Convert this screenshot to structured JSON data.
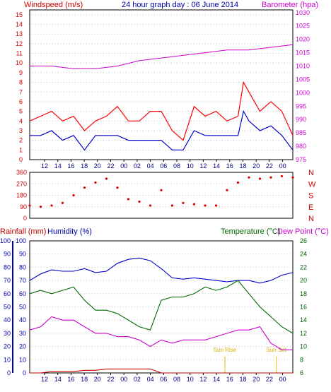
{
  "chart_data": [
    {
      "type": "line",
      "panel": "wind-barometer",
      "title": "24 hour graph day : 06 June 2014",
      "left_axis_label": "Windspeed (m/s)",
      "right_axis_label": "Barometer (hpa)",
      "left_ticks": [
        0,
        1,
        2,
        3,
        4,
        5,
        6,
        7,
        8,
        9,
        10,
        11,
        12,
        13,
        14,
        15
      ],
      "right_ticks": [
        975,
        980,
        985,
        990,
        995,
        1000,
        1005,
        1010,
        1015,
        1020,
        1025,
        1030
      ],
      "left_ylim": [
        0,
        15.5
      ],
      "right_ylim": [
        975,
        1031
      ],
      "x_ticks": [
        "12",
        "14",
        "16",
        "18",
        "20",
        "22",
        "00",
        "02",
        "04",
        "06",
        "08",
        "10",
        "12",
        "14",
        "16",
        "18",
        "20",
        "22",
        "00"
      ],
      "x_hours_range": [
        11,
        35
      ],
      "series": [
        {
          "role": "barometer",
          "color": "#cc00cc",
          "x": [
            11,
            13,
            15,
            17,
            19,
            21,
            23,
            25,
            27,
            29,
            31,
            33,
            35
          ],
          "values": [
            1010,
            1010,
            1009,
            1009,
            1010,
            1012,
            1013,
            1014,
            1015,
            1016,
            1016,
            1017,
            1018
          ]
        },
        {
          "role": "gust",
          "color": "#ff0000",
          "x": [
            11,
            12,
            13,
            14,
            15,
            16,
            17,
            18,
            19,
            20,
            21,
            22,
            23,
            24,
            25,
            26,
            27,
            28,
            29,
            30,
            30.5,
            31,
            32,
            33,
            34,
            35
          ],
          "values": [
            4,
            4.5,
            5,
            4,
            4.5,
            3,
            4,
            4.5,
            5.5,
            4,
            4,
            5,
            5,
            3,
            2,
            5.5,
            4.5,
            5,
            4,
            4.5,
            8,
            7,
            5,
            6,
            5,
            2.5
          ]
        },
        {
          "role": "average",
          "color": "#0000cc",
          "x": [
            11,
            12,
            13,
            14,
            15,
            16,
            17,
            18,
            19,
            20,
            21,
            22,
            23,
            24,
            25,
            26,
            27,
            28,
            29,
            30,
            30.5,
            31,
            32,
            33,
            34,
            35
          ],
          "values": [
            2.5,
            2.5,
            3,
            2,
            2.5,
            1,
            2.5,
            2.5,
            2.5,
            2,
            2,
            2,
            2,
            1,
            1,
            3,
            2.5,
            2.5,
            2.5,
            2.5,
            5,
            4,
            3,
            3.5,
            2.5,
            1
          ]
        }
      ]
    },
    {
      "type": "scatter",
      "panel": "wind-direction",
      "left_ticks": [
        0,
        90,
        180,
        270,
        360
      ],
      "right_labels": [
        "N",
        "W",
        "S",
        "E",
        "N"
      ],
      "ylim": [
        0,
        360
      ],
      "x_hours_range": [
        11,
        35
      ],
      "series": [
        {
          "role": "direction",
          "color": "#dd0000",
          "x": [
            11,
            12,
            13,
            14,
            15,
            16,
            17,
            18,
            19,
            20,
            21,
            22,
            23,
            24,
            25,
            26,
            27,
            28,
            29,
            30,
            31,
            32,
            33,
            34,
            35
          ],
          "values": [
            100,
            90,
            100,
            120,
            180,
            240,
            280,
            310,
            240,
            150,
            130,
            100,
            220,
            100,
            120,
            110,
            100,
            100,
            220,
            280,
            320,
            310,
            320,
            330,
            320
          ]
        }
      ]
    },
    {
      "type": "line",
      "panel": "rain-humidity-temperature",
      "left_axis_label": "Rainfall (mm)",
      "humidity_axis_label": "Humidity (%)",
      "temp_axis_label": "Temperature (°C)",
      "dew_axis_label": "Dew Point (°C)",
      "rain_ticks": [
        0,
        10,
        20,
        30,
        40,
        50,
        60,
        70,
        80,
        90,
        100
      ],
      "humidity_ticks": [
        0,
        10,
        20,
        30,
        40,
        50,
        60,
        70,
        80,
        90,
        100
      ],
      "temp_ticks": [
        6,
        8,
        10,
        12,
        14,
        16,
        18,
        20,
        22,
        24,
        26
      ],
      "rain_ylim": [
        0,
        100
      ],
      "temp_ylim": [
        6,
        26
      ],
      "annotations": [
        {
          "text": "Sun Rise",
          "x": 28.8
        },
        {
          "text": "Sun Set",
          "x": 33.5
        }
      ],
      "x_hours_range": [
        11,
        35
      ],
      "series": [
        {
          "role": "humidity",
          "color": "#0000cc",
          "x": [
            11,
            12,
            13,
            14,
            15,
            16,
            17,
            18,
            19,
            20,
            21,
            22,
            23,
            24,
            25,
            26,
            27,
            28,
            29,
            30,
            31,
            32,
            33,
            34,
            35
          ],
          "values": [
            70,
            75,
            78,
            77,
            77,
            79,
            76,
            77,
            83,
            86,
            87,
            85,
            79,
            72,
            71,
            72,
            71,
            70,
            69,
            70,
            70,
            68,
            70,
            74,
            76
          ]
        },
        {
          "role": "temperature",
          "color": "#006600",
          "x": [
            11,
            12,
            13,
            14,
            15,
            16,
            17,
            18,
            19,
            20,
            21,
            22,
            23,
            24,
            25,
            26,
            27,
            28,
            29,
            30,
            31,
            32,
            33,
            34,
            35
          ],
          "values": [
            18,
            18.5,
            18,
            18.5,
            19,
            17,
            15.5,
            15.5,
            15,
            14,
            13,
            12.5,
            17,
            17.5,
            17.5,
            18,
            19,
            18.5,
            19,
            20,
            18,
            16,
            14.5,
            13,
            12
          ]
        },
        {
          "role": "dewpoint",
          "color": "#cc00cc",
          "x": [
            11,
            12,
            13,
            14,
            15,
            16,
            17,
            18,
            19,
            20,
            21,
            22,
            23,
            24,
            25,
            26,
            27,
            28,
            29,
            30,
            31,
            32,
            33,
            34,
            35
          ],
          "values": [
            12.5,
            13,
            14.5,
            14,
            14,
            13,
            12,
            12,
            11.5,
            11.5,
            11,
            10,
            11,
            10.5,
            11,
            11,
            11,
            11.5,
            12,
            12.5,
            12.5,
            13,
            10.5,
            9.5,
            9.5
          ]
        },
        {
          "role": "rainfall",
          "color": "#cc0000",
          "x": [
            11,
            12,
            13,
            14,
            15,
            16,
            17,
            18,
            19,
            20,
            21,
            22,
            23,
            24,
            25,
            26,
            27,
            28,
            29,
            30,
            31,
            32,
            33,
            34,
            35
          ],
          "values": [
            0,
            0,
            1,
            1,
            1,
            2,
            2,
            3,
            3,
            3,
            3,
            3,
            0,
            0,
            0,
            0,
            0,
            0,
            0,
            0,
            0,
            0,
            0,
            0,
            0
          ]
        }
      ]
    }
  ]
}
